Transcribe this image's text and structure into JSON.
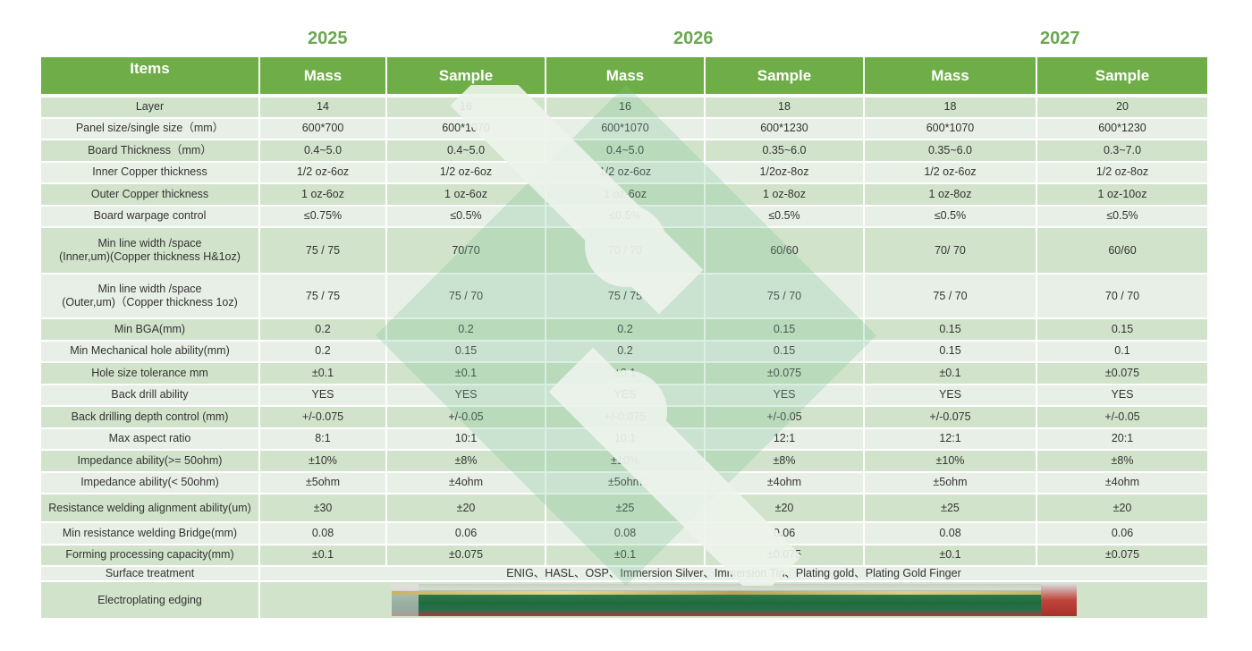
{
  "years": [
    "2025",
    "2026",
    "2027"
  ],
  "header": [
    "Items",
    "Mass",
    "Sample",
    "Mass",
    "Sample",
    "Mass",
    "Sample"
  ],
  "rows": [
    [
      "Layer",
      "14",
      "16",
      "16",
      "18",
      "18",
      "20"
    ],
    [
      "Panel size/single size（mm）",
      "600*700",
      "600*1070",
      "600*1070",
      "600*1230",
      "600*1070",
      "600*1230"
    ],
    [
      "Board Thickness（mm）",
      "0.4~5.0",
      "0.4~5.0",
      "0.4~5.0",
      "0.35~6.0",
      "0.35~6.0",
      "0.3~7.0"
    ],
    [
      "Inner Copper thickness",
      "1/2 oz-6oz",
      "1/2 oz-6oz",
      "1/2 oz-6oz",
      "1/2oz-8oz",
      "1/2 oz-6oz",
      "1/2 oz-8oz"
    ],
    [
      "Outer Copper thickness",
      "1 oz-6oz",
      "1 oz-6oz",
      "1 oz-6oz",
      "1 oz-8oz",
      "1 oz-8oz",
      "1 oz-10oz"
    ],
    [
      "Board warpage control",
      "≤0.75%",
      "≤0.5%",
      "≤0.5%",
      "≤0.5%",
      "≤0.5%",
      "≤0.5%"
    ],
    [
      "Min line width /space\n(Inner,um)(Copper thickness H&1oz)",
      "75 / 75",
      "70/70",
      "70 / 70",
      "60/60",
      "70/ 70",
      "60/60"
    ],
    [
      "Min line width /space\n(Outer,um)（Copper thickness 1oz)",
      "75 / 75",
      "75 / 70",
      "75 / 75",
      "75 / 70",
      "75 / 70",
      "70 / 70"
    ],
    [
      "Min BGA(mm)",
      "0.2",
      "0.2",
      "0.2",
      "0.15",
      "0.15",
      "0.15"
    ],
    [
      "Min Mechanical hole ability(mm)",
      "0.2",
      "0.15",
      "0.2",
      "0.15",
      "0.15",
      "0.1"
    ],
    [
      "Hole size tolerance  mm",
      "±0.1",
      "±0.1",
      "±0.1",
      "±0.075",
      "±0.1",
      "±0.075"
    ],
    [
      "Back drill ability",
      "YES",
      "YES",
      "YES",
      "YES",
      "YES",
      "YES"
    ],
    [
      "Back drilling depth control (mm)",
      "+/-0.075",
      "+/-0.05",
      "+/-0.075",
      "+/-0.05",
      "+/-0.075",
      "+/-0.05"
    ],
    [
      "Max aspect ratio",
      "8:1",
      "10:1",
      "10:1",
      "12:1",
      "12:1",
      "20:1"
    ],
    [
      "Impedance ability(>= 50ohm)",
      "±10%",
      "±8%",
      "±10%",
      "±8%",
      "±10%",
      "±8%"
    ],
    [
      "Impedance ability(< 50ohm)",
      "±5ohm",
      "±4ohm",
      "±5ohm",
      "±4ohm",
      "±5ohm",
      "±4ohm"
    ],
    [
      "Resistance welding alignment ability(um)",
      "±30",
      "±20",
      "±25",
      "±20",
      "±25",
      "±20"
    ],
    [
      "Min resistance welding Bridge(mm)",
      "0.08",
      "0.06",
      "0.08",
      "0.06",
      "0.08",
      "0.06"
    ],
    [
      "Forming processing capacity(mm)",
      "±0.1",
      "±0.075",
      "±0.1",
      "±0.075",
      "±0.1",
      "±0.075"
    ]
  ],
  "surface_treatment": {
    "label": "Surface treatment",
    "value": "ENIG、HASL、OSP、Immersion Silver、Immersion Tin、Plating gold、Plating Gold Finger"
  },
  "electroplating_edging": {
    "label": "Electroplating edging"
  },
  "colors": {
    "header_green": "#6fad48",
    "year_green": "#6aa84f",
    "row_dark": "#d2e3cb",
    "row_light": "#e8efe6",
    "watermark": "#7fc397"
  }
}
